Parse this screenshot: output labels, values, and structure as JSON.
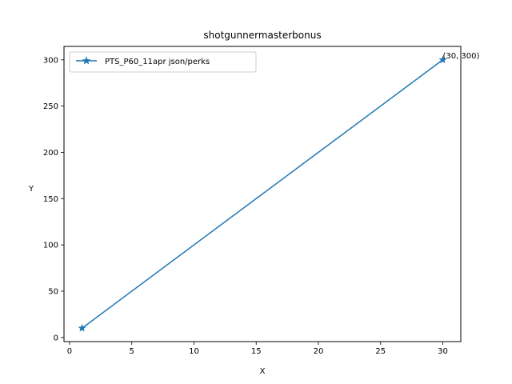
{
  "chart_data": {
    "type": "line",
    "title": "shotgunnermasterbonus",
    "xlabel": "X",
    "ylabel": "Y",
    "xlim": [
      -0.45,
      31.45
    ],
    "ylim": [
      -4.5,
      314.5
    ],
    "xticks": [
      0,
      5,
      10,
      15,
      20,
      25,
      30
    ],
    "yticks": [
      0,
      50,
      100,
      150,
      200,
      250,
      300
    ],
    "grid": false,
    "legend_position": "upper left",
    "series": [
      {
        "name": "PTS_P60_11apr json/perks",
        "color": "#1f77b4",
        "marker": "star",
        "x": [
          1,
          30
        ],
        "y": [
          10,
          300
        ]
      }
    ],
    "annotations": [
      {
        "text": "(30, 300)",
        "x": 30,
        "y": 300
      }
    ]
  }
}
